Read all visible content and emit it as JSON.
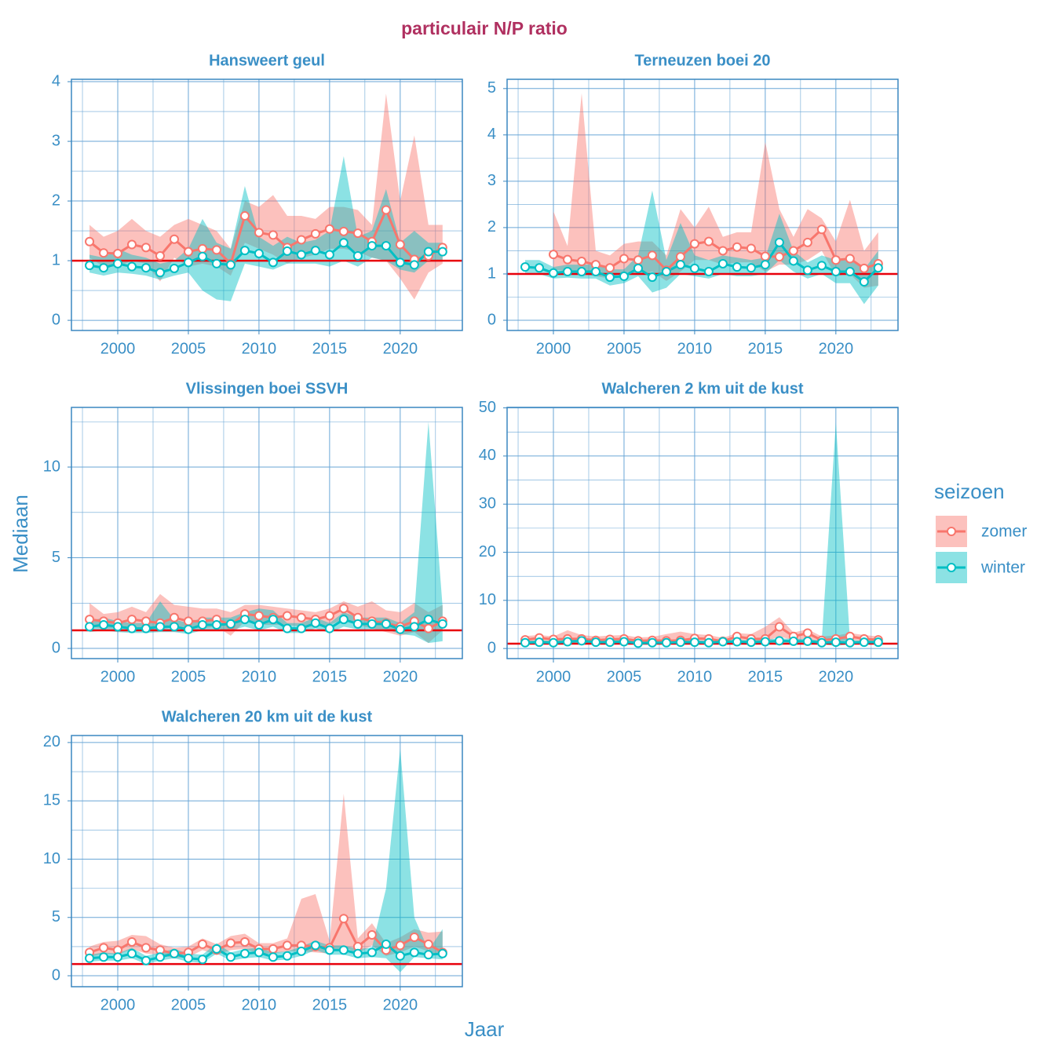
{
  "title": "particulair N/P ratio",
  "xlabel": "Jaar",
  "ylabel": "Mediaan",
  "legend": {
    "title": "seizoen",
    "position": "right"
  },
  "chart_data": [
    {
      "type": "line",
      "title": "Hansweert geul",
      "x": [
        1998,
        1999,
        2000,
        2001,
        2002,
        2003,
        2004,
        2005,
        2006,
        2007,
        2008,
        2009,
        2010,
        2011,
        2012,
        2013,
        2014,
        2015,
        2016,
        2017,
        2018,
        2019,
        2020,
        2021,
        2022,
        2023
      ],
      "xlim": [
        1996.72,
        2024.4
      ],
      "xticks": [
        2000,
        2005,
        2010,
        2015,
        2020
      ],
      "ylim": [
        -0.17,
        4.04
      ],
      "yticks": [
        0,
        1,
        2,
        3,
        4
      ],
      "grid": true,
      "reference_line": 1,
      "reference_color": "#e8000b",
      "series": [
        {
          "name": "zomer",
          "color": "#f8766d",
          "values": [
            1.32,
            1.13,
            1.12,
            1.27,
            1.22,
            1.08,
            1.36,
            1.15,
            1.2,
            1.18,
            0.95,
            1.75,
            1.47,
            1.43,
            1.22,
            1.35,
            1.45,
            1.53,
            1.49,
            1.46,
            1.32,
            1.85,
            1.27,
            1.02,
            1.08,
            1.22
          ],
          "upper": [
            1.6,
            1.4,
            1.5,
            1.7,
            1.5,
            1.4,
            1.6,
            1.7,
            1.6,
            1.5,
            1.2,
            2.0,
            1.9,
            2.1,
            1.75,
            1.75,
            1.7,
            1.9,
            1.9,
            1.85,
            1.6,
            3.8,
            2.0,
            3.1,
            1.6,
            1.6
          ],
          "lower": [
            1.05,
            0.9,
            0.9,
            1.0,
            0.95,
            0.65,
            1.05,
            0.9,
            0.95,
            0.9,
            0.75,
            1.3,
            1.2,
            1.1,
            0.95,
            1.05,
            1.1,
            1.2,
            1.2,
            1.15,
            1.05,
            1.0,
            0.7,
            0.35,
            0.8,
            0.95
          ]
        },
        {
          "name": "winter",
          "color": "#00bfc4",
          "values": [
            0.92,
            0.88,
            0.95,
            0.9,
            0.88,
            0.8,
            0.87,
            0.97,
            1.07,
            0.95,
            0.93,
            1.17,
            1.12,
            0.97,
            1.16,
            1.1,
            1.17,
            1.1,
            1.3,
            1.08,
            1.25,
            1.25,
            0.97,
            0.93,
            1.15,
            1.15
          ],
          "upper": [
            1.1,
            1.05,
            1.2,
            1.1,
            1.05,
            0.95,
            1.0,
            1.2,
            1.7,
            1.3,
            1.2,
            2.25,
            1.4,
            1.25,
            1.4,
            1.3,
            1.35,
            1.5,
            2.75,
            1.4,
            1.5,
            2.2,
            1.3,
            1.5,
            1.3,
            1.3
          ],
          "lower": [
            0.8,
            0.75,
            0.8,
            0.78,
            0.75,
            0.68,
            0.75,
            0.8,
            0.5,
            0.35,
            0.32,
            0.95,
            0.9,
            0.85,
            0.95,
            0.95,
            0.95,
            0.9,
            1.0,
            0.9,
            1.05,
            1.0,
            0.85,
            0.8,
            1.0,
            1.0
          ]
        }
      ]
    },
    {
      "type": "line",
      "title": "Terneuzen boei 20",
      "x": [
        1998,
        1999,
        2000,
        2001,
        2002,
        2003,
        2004,
        2005,
        2006,
        2007,
        2008,
        2009,
        2010,
        2011,
        2012,
        2013,
        2014,
        2015,
        2016,
        2017,
        2018,
        2019,
        2020,
        2021,
        2022,
        2023
      ],
      "xlim": [
        1996.72,
        2024.4
      ],
      "xticks": [
        2000,
        2005,
        2010,
        2015,
        2020
      ],
      "ylim": [
        -0.22,
        5.2
      ],
      "yticks": [
        0,
        1,
        2,
        3,
        4,
        5
      ],
      "grid": true,
      "reference_line": 1,
      "reference_color": "#e8000b",
      "series": [
        {
          "name": "zomer",
          "color": "#f8766d",
          "values": [
            null,
            null,
            1.42,
            1.31,
            1.27,
            1.2,
            1.13,
            1.33,
            1.3,
            1.4,
            1.08,
            1.37,
            1.65,
            1.7,
            1.5,
            1.58,
            1.55,
            1.38,
            1.37,
            1.5,
            1.68,
            1.96,
            1.3,
            1.33,
            1.12,
            1.22
          ],
          "upper": [
            null,
            null,
            2.35,
            1.6,
            4.9,
            1.5,
            1.4,
            1.65,
            1.7,
            1.7,
            1.4,
            2.4,
            2.0,
            2.45,
            1.8,
            1.9,
            1.9,
            3.85,
            2.4,
            1.8,
            2.4,
            2.2,
            1.7,
            2.6,
            1.5,
            1.9
          ],
          "lower": [
            null,
            null,
            1.1,
            1.05,
            1.0,
            0.95,
            0.9,
            1.05,
            1.0,
            1.05,
            0.85,
            1.05,
            1.3,
            1.3,
            1.2,
            1.25,
            1.25,
            1.05,
            1.2,
            1.2,
            1.3,
            1.5,
            0.95,
            1.0,
            0.7,
            0.75
          ]
        },
        {
          "name": "winter",
          "color": "#00bfc4",
          "values": [
            1.15,
            1.13,
            1.02,
            1.05,
            1.05,
            1.05,
            0.93,
            0.95,
            1.12,
            0.93,
            1.05,
            1.2,
            1.12,
            1.05,
            1.22,
            1.15,
            1.13,
            1.2,
            1.68,
            1.28,
            1.08,
            1.18,
            1.05,
            1.05,
            0.83,
            1.13
          ],
          "upper": [
            1.3,
            1.3,
            1.15,
            1.2,
            1.2,
            1.2,
            1.1,
            1.1,
            1.4,
            2.8,
            1.3,
            2.1,
            1.4,
            1.3,
            1.4,
            1.35,
            1.3,
            1.35,
            2.3,
            1.5,
            1.25,
            1.4,
            1.3,
            1.3,
            1.1,
            1.5
          ],
          "lower": [
            1.0,
            1.0,
            0.9,
            0.92,
            0.9,
            0.9,
            0.75,
            0.8,
            0.95,
            0.6,
            0.7,
            1.0,
            0.95,
            0.9,
            1.0,
            0.95,
            0.95,
            1.0,
            1.3,
            1.05,
            0.9,
            1.0,
            0.8,
            0.8,
            0.35,
            0.75
          ]
        }
      ]
    },
    {
      "type": "line",
      "title": "Vlissingen boei SSVH",
      "x": [
        1998,
        1999,
        2000,
        2001,
        2002,
        2003,
        2004,
        2005,
        2006,
        2007,
        2008,
        2009,
        2010,
        2011,
        2012,
        2013,
        2014,
        2015,
        2016,
        2017,
        2018,
        2019,
        2020,
        2021,
        2022,
        2023
      ],
      "xlim": [
        1996.72,
        2024.4
      ],
      "xticks": [
        2000,
        2005,
        2010,
        2015,
        2020
      ],
      "ylim": [
        -0.56,
        13.29
      ],
      "yticks": [
        0,
        5,
        10
      ],
      "grid": true,
      "reference_line": 1,
      "reference_color": "#e8000b",
      "series": [
        {
          "name": "zomer",
          "color": "#f8766d",
          "values": [
            1.6,
            1.5,
            1.4,
            1.6,
            1.5,
            1.4,
            1.7,
            1.5,
            1.5,
            1.6,
            1.3,
            1.9,
            1.8,
            1.7,
            1.8,
            1.7,
            1.6,
            1.8,
            2.2,
            1.7,
            1.5,
            1.4,
            1.2,
            1.5,
            1.1,
            1.5
          ],
          "upper": [
            2.5,
            1.9,
            2.0,
            2.3,
            2.0,
            3.0,
            2.4,
            2.3,
            2.2,
            2.2,
            2.0,
            2.4,
            2.4,
            2.3,
            2.2,
            2.1,
            2.0,
            2.2,
            2.6,
            2.3,
            2.6,
            2.1,
            2.0,
            2.5,
            2.0,
            2.4
          ],
          "lower": [
            1.2,
            1.1,
            1.1,
            1.2,
            1.1,
            1.0,
            1.2,
            1.1,
            1.1,
            1.2,
            0.7,
            1.5,
            1.3,
            1.3,
            1.3,
            1.2,
            1.2,
            1.3,
            1.6,
            1.3,
            1.1,
            0.9,
            0.7,
            0.9,
            0.3,
            1.0
          ]
        },
        {
          "name": "winter",
          "color": "#00bfc4",
          "values": [
            1.2,
            1.3,
            1.2,
            1.1,
            1.1,
            1.2,
            1.2,
            1.05,
            1.3,
            1.3,
            1.35,
            1.6,
            1.3,
            1.6,
            1.1,
            1.1,
            1.4,
            1.1,
            1.6,
            1.35,
            1.35,
            1.35,
            1.05,
            1.2,
            1.6,
            1.35
          ],
          "upper": [
            1.5,
            1.7,
            1.5,
            1.4,
            1.4,
            2.6,
            1.6,
            1.4,
            1.7,
            1.7,
            1.7,
            2.0,
            2.2,
            2.1,
            1.4,
            1.4,
            1.7,
            1.4,
            2.0,
            1.7,
            1.7,
            1.7,
            1.4,
            2.0,
            12.5,
            2.3
          ],
          "lower": [
            0.9,
            1.0,
            0.9,
            0.85,
            0.85,
            0.9,
            0.9,
            0.8,
            1.0,
            1.0,
            1.0,
            1.2,
            1.0,
            1.2,
            0.85,
            0.85,
            1.1,
            0.85,
            1.2,
            1.05,
            1.05,
            1.05,
            0.8,
            0.7,
            0.3,
            0.4
          ]
        }
      ]
    },
    {
      "type": "line",
      "title": "Walcheren 2 km uit de kust",
      "x": [
        1998,
        1999,
        2000,
        2001,
        2002,
        2003,
        2004,
        2005,
        2006,
        2007,
        2008,
        2009,
        2010,
        2011,
        2012,
        2013,
        2014,
        2015,
        2016,
        2017,
        2018,
        2019,
        2020,
        2021,
        2022,
        2023
      ],
      "xlim": [
        1996.72,
        2024.4
      ],
      "xticks": [
        2000,
        2005,
        2010,
        2015,
        2020
      ],
      "ylim": [
        -2.1,
        50.1
      ],
      "yticks": [
        0,
        10,
        20,
        30,
        40,
        50
      ],
      "grid": true,
      "reference_line": 1,
      "reference_color": "#e8000b",
      "series": [
        {
          "name": "zomer",
          "color": "#f8766d",
          "values": [
            1.8,
            2.2,
            1.9,
            2.0,
            2.0,
            1.7,
            1.9,
            2.0,
            1.6,
            1.7,
            1.6,
            1.7,
            2.1,
            2.0,
            1.5,
            2.5,
            2.0,
            2.0,
            4.5,
            2.5,
            3.2,
            1.7,
            2.0,
            2.5,
            2.0,
            1.8
          ],
          "upper": [
            2.6,
            2.8,
            2.5,
            3.8,
            2.8,
            2.5,
            2.7,
            2.8,
            2.3,
            2.4,
            3.0,
            3.5,
            3.0,
            2.8,
            2.2,
            3.2,
            3.0,
            4.5,
            6.5,
            3.3,
            4.0,
            2.5,
            2.7,
            3.2,
            2.8,
            2.5
          ],
          "lower": [
            1.2,
            1.5,
            1.3,
            1.4,
            1.4,
            1.2,
            1.3,
            1.4,
            1.1,
            1.2,
            1.1,
            1.2,
            1.4,
            1.4,
            1.0,
            1.7,
            1.4,
            1.4,
            2.5,
            1.7,
            2.0,
            1.1,
            1.4,
            1.7,
            1.4,
            1.2
          ]
        },
        {
          "name": "winter",
          "color": "#00bfc4",
          "values": [
            1.2,
            1.3,
            1.2,
            1.4,
            1.6,
            1.3,
            1.3,
            1.4,
            1.1,
            1.2,
            1.2,
            1.3,
            1.3,
            1.2,
            1.4,
            1.4,
            1.3,
            1.4,
            1.6,
            1.5,
            1.5,
            1.2,
            1.3,
            1.2,
            1.3,
            1.3
          ],
          "upper": [
            1.6,
            1.7,
            1.6,
            1.9,
            2.1,
            1.7,
            1.7,
            1.9,
            1.5,
            1.6,
            1.6,
            1.7,
            1.7,
            1.6,
            1.8,
            1.8,
            1.7,
            1.9,
            2.1,
            2.0,
            2.0,
            1.6,
            47,
            1.7,
            1.7,
            1.7
          ],
          "lower": [
            0.9,
            1.0,
            0.9,
            1.0,
            1.2,
            1.0,
            1.0,
            1.0,
            0.8,
            0.9,
            0.9,
            1.0,
            1.0,
            0.9,
            1.0,
            1.0,
            1.0,
            1.0,
            1.2,
            1.1,
            1.1,
            0.9,
            0.5,
            0.9,
            1.0,
            1.0
          ]
        }
      ]
    },
    {
      "type": "line",
      "title": "Walcheren 20 km uit de kust",
      "x": [
        1998,
        1999,
        2000,
        2001,
        2002,
        2003,
        2004,
        2005,
        2006,
        2007,
        2008,
        2009,
        2010,
        2011,
        2012,
        2013,
        2014,
        2015,
        2016,
        2017,
        2018,
        2019,
        2020,
        2021,
        2022,
        2023
      ],
      "xlim": [
        1996.72,
        2024.4
      ],
      "xticks": [
        2000,
        2005,
        2010,
        2015,
        2020
      ],
      "ylim": [
        -0.94,
        20.6
      ],
      "yticks": [
        0,
        5,
        10,
        15,
        20
      ],
      "grid": true,
      "reference_line": 1,
      "reference_color": "#e8000b",
      "series": [
        {
          "name": "zomer",
          "color": "#f8766d",
          "values": [
            2.0,
            2.4,
            2.2,
            2.9,
            2.4,
            2.2,
            1.9,
            2.0,
            2.7,
            2.2,
            2.8,
            2.9,
            2.3,
            2.3,
            2.6,
            2.6,
            2.5,
            2.4,
            4.9,
            2.5,
            3.5,
            2.2,
            2.6,
            3.3,
            2.7,
            2.0
          ],
          "upper": [
            2.5,
            2.9,
            3.0,
            3.5,
            3.4,
            2.7,
            2.4,
            2.5,
            3.2,
            2.7,
            3.4,
            3.6,
            2.8,
            2.8,
            3.2,
            6.6,
            7.0,
            3.0,
            15.6,
            3.2,
            4.5,
            2.8,
            3.3,
            4.0,
            3.7,
            3.8
          ],
          "lower": [
            1.6,
            1.9,
            1.8,
            2.3,
            1.9,
            1.8,
            1.5,
            1.6,
            2.2,
            1.8,
            2.2,
            2.3,
            1.9,
            1.9,
            2.1,
            2.1,
            2.0,
            1.9,
            2.5,
            1.9,
            2.6,
            1.7,
            2.0,
            2.5,
            2.1,
            1.6
          ]
        },
        {
          "name": "winter",
          "color": "#00bfc4",
          "values": [
            1.5,
            1.6,
            1.6,
            1.9,
            1.3,
            1.6,
            1.9,
            1.5,
            1.4,
            2.3,
            1.6,
            1.9,
            2.0,
            1.6,
            1.7,
            2.1,
            2.6,
            2.2,
            2.2,
            1.9,
            2.0,
            2.7,
            1.7,
            2.0,
            1.8,
            1.9
          ],
          "upper": [
            1.8,
            2.0,
            1.9,
            2.4,
            1.7,
            2.0,
            2.3,
            1.9,
            1.8,
            2.8,
            2.0,
            2.3,
            2.4,
            2.0,
            2.1,
            2.5,
            3.0,
            2.6,
            2.6,
            2.3,
            2.4,
            7.5,
            19.5,
            5.0,
            2.2,
            4.0
          ],
          "lower": [
            1.2,
            1.3,
            1.3,
            1.5,
            1.0,
            1.3,
            1.5,
            1.2,
            1.1,
            1.9,
            1.3,
            1.5,
            1.6,
            1.3,
            1.4,
            1.7,
            2.2,
            1.8,
            1.8,
            1.5,
            1.6,
            1.5,
            0.3,
            1.6,
            1.5,
            1.4
          ]
        }
      ]
    }
  ]
}
